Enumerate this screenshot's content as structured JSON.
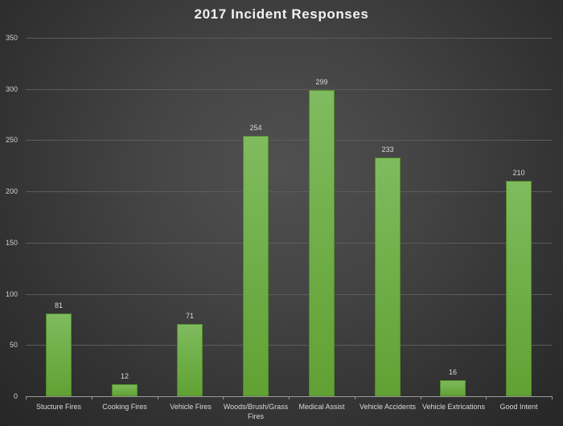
{
  "chart_data": {
    "type": "bar",
    "title": "2017 Incident Responses",
    "xlabel": "",
    "ylabel": "",
    "ylim": [
      0,
      350
    ],
    "yticks": [
      0,
      50,
      100,
      150,
      200,
      250,
      300,
      350
    ],
    "grid": true,
    "legend": null,
    "categories": [
      "Stucture Fires",
      "Cooking Fires",
      "Vehicle Fires",
      "Woods/Brush/Grass Fires",
      "Medical Assist",
      "Vehicle Accidents",
      "Vehicle Extrications",
      "Good Intent"
    ],
    "values": [
      81,
      12,
      71,
      254,
      299,
      233,
      16,
      210
    ],
    "data_labels": [
      "81",
      "12",
      "71",
      "254",
      "299",
      "233",
      "16",
      "210"
    ],
    "bar_color": "#6fae48",
    "background_color": "#404040"
  }
}
